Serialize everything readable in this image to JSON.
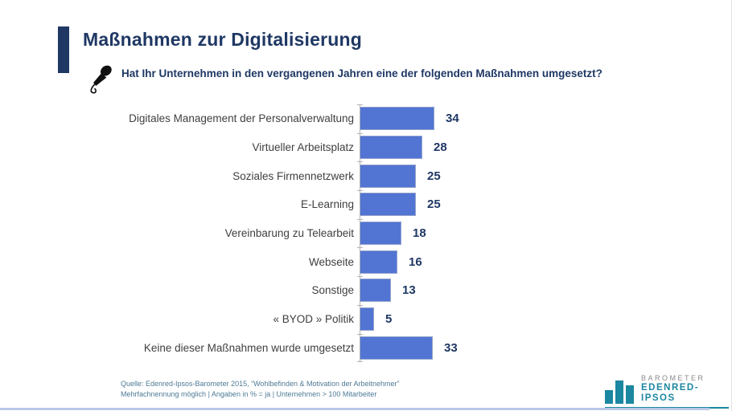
{
  "header": {
    "title": "Maßnahmen zur Digitalisierung",
    "question": "Hat Ihr Unternehmen in den vergangenen Jahren eine der folgenden Maßnahmen umgesetzt?"
  },
  "chart_data": {
    "type": "bar",
    "orientation": "horizontal",
    "title": "Maßnahmen zur Digitalisierung",
    "xlabel": "",
    "ylabel": "",
    "unit": "%",
    "xlim": [
      0,
      40
    ],
    "grid": false,
    "legend": false,
    "categories": [
      "Digitales Management der Personalverwaltung",
      "Virtueller Arbeitsplatz",
      "Soziales Firmennetzwerk",
      "E-Learning",
      "Vereinbarung zu Telearbeit",
      "Webseite",
      "Sonstige",
      "« BYOD » Politik",
      "Keine dieser Maßnahmen wurde umgesetzt"
    ],
    "values": [
      34,
      28,
      25,
      25,
      18,
      16,
      13,
      5,
      33
    ],
    "bar_color": "#5274d3",
    "value_label_color": "#1f3864"
  },
  "footer": {
    "source_line1": "Quelle: Edenred-Ipsos-Barometer 2015, “Wohlbefinden & Motivation der Arbeitnehmer”",
    "source_line2": "Mehrfachnennung möglich | Angaben in % = ja | Unternehmen > 100 Mitarbeiter"
  },
  "logo": {
    "line1": "BAROMETER",
    "line2": "EDENRED-IPSOS"
  },
  "colors": {
    "title_navy": "#1f3864",
    "bar_blue": "#5274d3",
    "logo_teal": "#1b87a0",
    "footer_text": "#4e7a96",
    "bottom_line": "#b9c7e8"
  }
}
